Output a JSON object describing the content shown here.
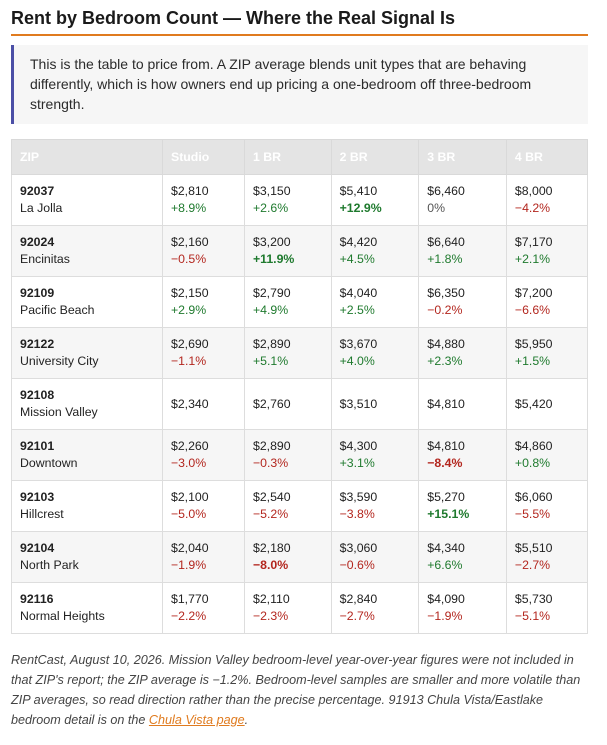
{
  "title": "Rent by Bedroom Count — Where the Real Signal Is",
  "intro": "This is the table to price from. A ZIP average blends unit types that are behaving differently, which is how owners end up pricing a one-bedroom off three-bedroom strength.",
  "table": {
    "headers": [
      "ZIP",
      "Studio",
      "1 BR",
      "2 BR",
      "3 BR",
      "4 BR"
    ],
    "rows": [
      {
        "zip": "92037",
        "name": "La Jolla",
        "cells": [
          {
            "price": "$2,810",
            "change": "+8.9%",
            "dir": "up",
            "strong": false
          },
          {
            "price": "$3,150",
            "change": "+2.6%",
            "dir": "up",
            "strong": false
          },
          {
            "price": "$5,410",
            "change": "+12.9%",
            "dir": "up",
            "strong": true
          },
          {
            "price": "$6,460",
            "change": "0%",
            "dir": "flat",
            "strong": false
          },
          {
            "price": "$8,000",
            "change": "−4.2%",
            "dir": "down",
            "strong": false
          }
        ]
      },
      {
        "zip": "92024",
        "name": "Encinitas",
        "cells": [
          {
            "price": "$2,160",
            "change": "−0.5%",
            "dir": "down",
            "strong": false
          },
          {
            "price": "$3,200",
            "change": "+11.9%",
            "dir": "up",
            "strong": true
          },
          {
            "price": "$4,420",
            "change": "+4.5%",
            "dir": "up",
            "strong": false
          },
          {
            "price": "$6,640",
            "change": "+1.8%",
            "dir": "up",
            "strong": false
          },
          {
            "price": "$7,170",
            "change": "+2.1%",
            "dir": "up",
            "strong": false
          }
        ]
      },
      {
        "zip": "92109",
        "name": "Pacific Beach",
        "cells": [
          {
            "price": "$2,150",
            "change": "+2.9%",
            "dir": "up",
            "strong": false
          },
          {
            "price": "$2,790",
            "change": "+4.9%",
            "dir": "up",
            "strong": false
          },
          {
            "price": "$4,040",
            "change": "+2.5%",
            "dir": "up",
            "strong": false
          },
          {
            "price": "$6,350",
            "change": "−0.2%",
            "dir": "down",
            "strong": false
          },
          {
            "price": "$7,200",
            "change": "−6.6%",
            "dir": "down",
            "strong": false
          }
        ]
      },
      {
        "zip": "92122",
        "name": "University City",
        "cells": [
          {
            "price": "$2,690",
            "change": "−1.1%",
            "dir": "down",
            "strong": false
          },
          {
            "price": "$2,890",
            "change": "+5.1%",
            "dir": "up",
            "strong": false
          },
          {
            "price": "$3,670",
            "change": "+4.0%",
            "dir": "up",
            "strong": false
          },
          {
            "price": "$4,880",
            "change": "+2.3%",
            "dir": "up",
            "strong": false
          },
          {
            "price": "$5,950",
            "change": "+1.5%",
            "dir": "up",
            "strong": false
          }
        ]
      },
      {
        "zip": "92108",
        "name": "Mission Valley",
        "cells": [
          {
            "price": "$2,340",
            "change": "",
            "dir": "flat",
            "strong": false
          },
          {
            "price": "$2,760",
            "change": "",
            "dir": "flat",
            "strong": false
          },
          {
            "price": "$3,510",
            "change": "",
            "dir": "flat",
            "strong": false
          },
          {
            "price": "$4,810",
            "change": "",
            "dir": "flat",
            "strong": false
          },
          {
            "price": "$5,420",
            "change": "",
            "dir": "flat",
            "strong": false
          }
        ]
      },
      {
        "zip": "92101",
        "name": "Downtown",
        "cells": [
          {
            "price": "$2,260",
            "change": "−3.0%",
            "dir": "down",
            "strong": false
          },
          {
            "price": "$2,890",
            "change": "−0.3%",
            "dir": "down",
            "strong": false
          },
          {
            "price": "$4,300",
            "change": "+3.1%",
            "dir": "up",
            "strong": false
          },
          {
            "price": "$4,810",
            "change": "−8.4%",
            "dir": "down",
            "strong": true
          },
          {
            "price": "$4,860",
            "change": "+0.8%",
            "dir": "up",
            "strong": false
          }
        ]
      },
      {
        "zip": "92103",
        "name": "Hillcrest",
        "cells": [
          {
            "price": "$2,100",
            "change": "−5.0%",
            "dir": "down",
            "strong": false
          },
          {
            "price": "$2,540",
            "change": "−5.2%",
            "dir": "down",
            "strong": false
          },
          {
            "price": "$3,590",
            "change": "−3.8%",
            "dir": "down",
            "strong": false
          },
          {
            "price": "$5,270",
            "change": "+15.1%",
            "dir": "up",
            "strong": true
          },
          {
            "price": "$6,060",
            "change": "−5.5%",
            "dir": "down",
            "strong": false
          }
        ]
      },
      {
        "zip": "92104",
        "name": "North Park",
        "cells": [
          {
            "price": "$2,040",
            "change": "−1.9%",
            "dir": "down",
            "strong": false
          },
          {
            "price": "$2,180",
            "change": "−8.0%",
            "dir": "down",
            "strong": true
          },
          {
            "price": "$3,060",
            "change": "−0.6%",
            "dir": "down",
            "strong": false
          },
          {
            "price": "$4,340",
            "change": "+6.6%",
            "dir": "up",
            "strong": false
          },
          {
            "price": "$5,510",
            "change": "−2.7%",
            "dir": "down",
            "strong": false
          }
        ]
      },
      {
        "zip": "92116",
        "name": "Normal Heights",
        "cells": [
          {
            "price": "$1,770",
            "change": "−2.2%",
            "dir": "down",
            "strong": false
          },
          {
            "price": "$2,110",
            "change": "−2.3%",
            "dir": "down",
            "strong": false
          },
          {
            "price": "$2,840",
            "change": "−2.7%",
            "dir": "down",
            "strong": false
          },
          {
            "price": "$4,090",
            "change": "−1.9%",
            "dir": "down",
            "strong": false
          },
          {
            "price": "$5,730",
            "change": "−5.1%",
            "dir": "down",
            "strong": false
          }
        ]
      }
    ]
  },
  "footnote": {
    "text": "RentCast, August 10, 2026. Mission Valley bedroom-level year-over-year figures were not included in that ZIP's report; the ZIP average is −1.2%. Bedroom-level samples are smaller and more volatile than ZIP averages, so read direction rather than the precise percentage. 91913 Chula Vista/Eastlake bedroom detail is on the ",
    "link_text": "Chula Vista page",
    "end": "."
  },
  "colors": {
    "accent": "#e07b1f",
    "callout_border": "#4b4fa6",
    "up": "#1f7a2e",
    "down": "#b3261e"
  }
}
